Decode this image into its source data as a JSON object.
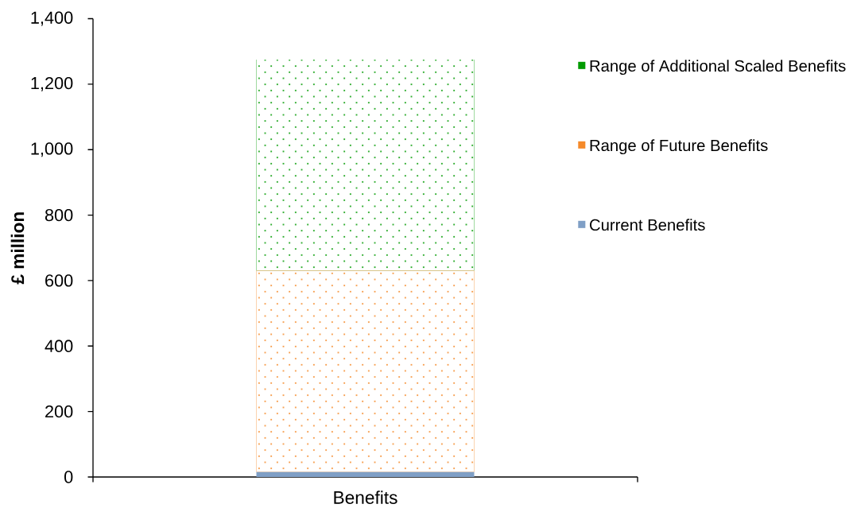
{
  "chart_data": {
    "type": "bar",
    "stacked": true,
    "ylabel": "£ million",
    "categories": [
      "Benefits"
    ],
    "series": [
      {
        "name": "Current Benefits",
        "color": "#7f9fc6",
        "values": [
          15
        ]
      },
      {
        "name": "Range of Future Benefits",
        "color": "#f58a2a",
        "values": [
          615
        ]
      },
      {
        "name": "Range of Additional Scaled Benefits",
        "color": "#009a00",
        "values": [
          645
        ]
      }
    ],
    "ylim": [
      0,
      1400
    ],
    "yticks": [
      0,
      200,
      400,
      600,
      800,
      {
        "value": 1000,
        "label": "1,000"
      },
      {
        "value": 1200,
        "label": "1,200"
      },
      {
        "value": 1400,
        "label": "1,400"
      }
    ],
    "legend": "right"
  }
}
